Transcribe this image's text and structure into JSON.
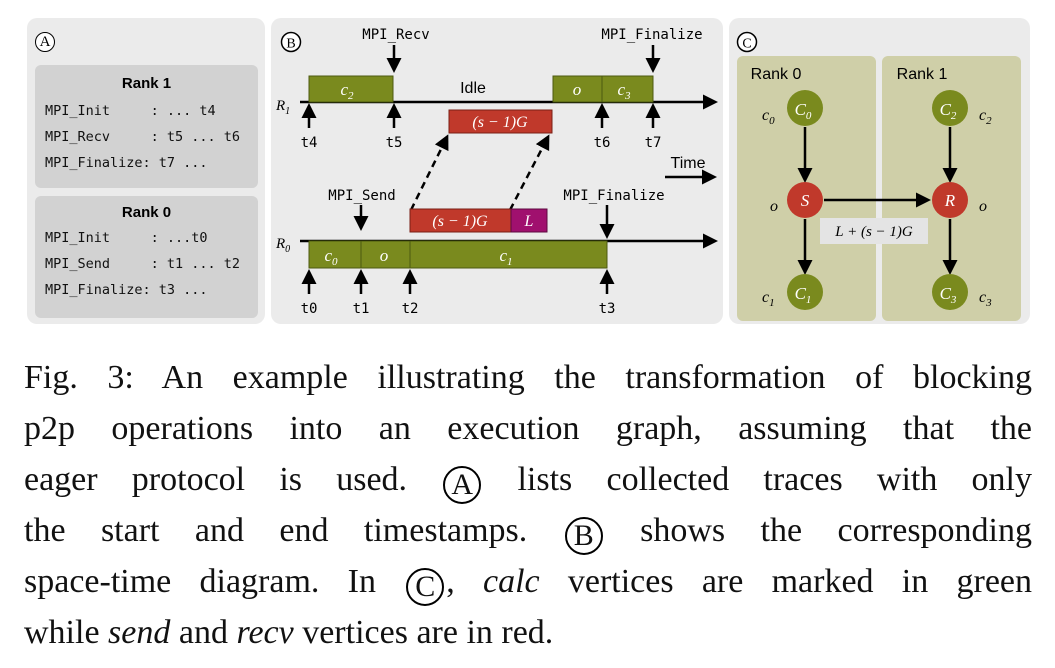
{
  "panelA": {
    "label": "A",
    "rank1": {
      "title": "Rank 1",
      "lines": [
        "MPI_Init     : ... t4",
        "MPI_Recv     : t5 ... t6",
        "MPI_Finalize: t7 ..."
      ]
    },
    "rank0": {
      "title": "Rank 0",
      "lines": [
        "MPI_Init     : ...t0",
        "MPI_Send     : t1 ... t2",
        "MPI_Finalize: t3 ..."
      ]
    }
  },
  "panelB": {
    "label": "B",
    "mpi_recv": "MPI_Recv",
    "mpi_finalize_top": "MPI_Finalize",
    "idle": "Idle",
    "time": "Time",
    "mpi_send": "MPI_Send",
    "mpi_finalize_bottom": "MPI_Finalize",
    "r1": "R",
    "r1_sub": "1",
    "r0": "R",
    "r0_sub": "0",
    "bar_c2": "c",
    "bar_c2_sub": "2",
    "bar_o_top": "o",
    "bar_c3": "c",
    "bar_c3_sub": "3",
    "bar_c0": "c",
    "bar_c0_sub": "0",
    "bar_o_bottom": "o",
    "bar_c1": "c",
    "bar_c1_sub": "1",
    "gap_top": "(s − 1)G",
    "gap_bottom": "(s − 1)G",
    "latency": "L",
    "ticks_top": [
      "t4",
      "t5",
      "t6",
      "t7"
    ],
    "ticks_bottom": [
      "t0",
      "t1",
      "t2",
      "t3"
    ]
  },
  "panelC": {
    "label": "C",
    "rank0": "Rank 0",
    "rank1": "Rank 1",
    "node_C0": "C",
    "node_C0_sub": "0",
    "node_C1": "C",
    "node_C1_sub": "1",
    "node_C2": "C",
    "node_C2_sub": "2",
    "node_C3": "C",
    "node_C3_sub": "3",
    "node_S": "S",
    "node_R": "R",
    "lab_c0": "c",
    "lab_c0_sub": "0",
    "lab_c1": "c",
    "lab_c1_sub": "1",
    "lab_c2": "c",
    "lab_c2_sub": "2",
    "lab_c3": "c",
    "lab_c3_sub": "3",
    "lab_o_left": "o",
    "lab_o_right": "o",
    "edge_label": "L + (s − 1)G"
  },
  "caption": {
    "l1": "Fig. 3: An example illustrating the transformation of blocking",
    "l2": "p2p operations into an execution graph, assuming that the",
    "l3a": "eager protocol is used.",
    "l3circ": "A",
    "l3b": "lists collected traces with only",
    "l4a": "the start and end timestamps.",
    "l4circ": "B",
    "l4b": "shows the corresponding",
    "l5a": "space-time diagram. In",
    "l5circ": "C",
    "l5b": ",",
    "l5c": "calc",
    "l5d": "vertices are marked in green",
    "l6a": "while",
    "l6b": "send",
    "l6c": "and",
    "l6d": "recv",
    "l6e": "vertices are in red."
  },
  "colors": {
    "panel_bg": "#ebebeb",
    "trace_box": "#d2d2d2",
    "calc_green": "#7a8a1e",
    "send_red": "#c0392b",
    "latency_magenta": "#a0106e",
    "rank_column": "#cfcfa8"
  }
}
